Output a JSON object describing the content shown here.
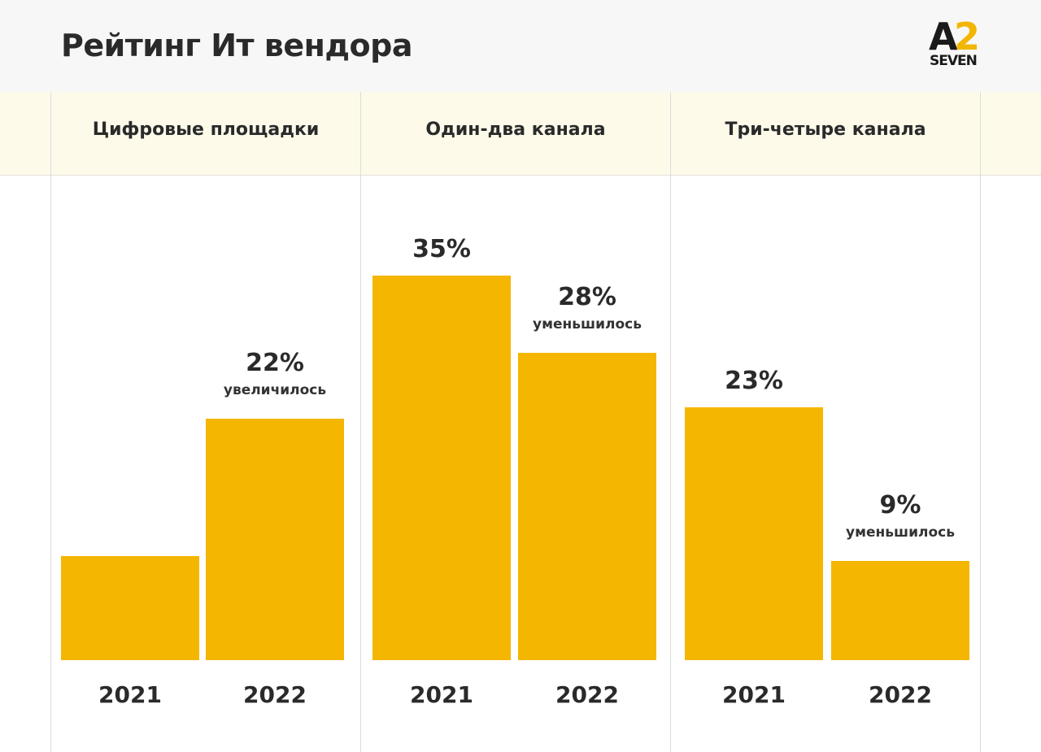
{
  "header": {
    "title": "Рейтинг Ит вендора",
    "logo_top": "A",
    "logo_num": "2",
    "logo_bottom": "SEVEN"
  },
  "colors": {
    "bar": "#f4b600",
    "band": "#fdfaea",
    "header": "#f7f7f7",
    "logo_accent": "#f2b600"
  },
  "chart_data": {
    "type": "bar",
    "title": "",
    "ylim": [
      0,
      40
    ],
    "groups": [
      {
        "name": "Цифровые площадки",
        "bars": [
          {
            "year": "2021",
            "value": 9.5,
            "label": "",
            "note": ""
          },
          {
            "year": "2022",
            "value": 22,
            "label": "22%",
            "note": "увеличилось"
          }
        ]
      },
      {
        "name": "Один-два канала",
        "bars": [
          {
            "year": "2021",
            "value": 35,
            "label": "35%",
            "note": ""
          },
          {
            "year": "2022",
            "value": 28,
            "label": "28%",
            "note": "уменьшилось"
          }
        ]
      },
      {
        "name": "Три-четыре канала",
        "bars": [
          {
            "year": "2021",
            "value": 23,
            "label": "23%",
            "note": ""
          },
          {
            "year": "2022",
            "value": 9,
            "label": "9%",
            "note": "уменьшилось"
          }
        ]
      }
    ]
  }
}
